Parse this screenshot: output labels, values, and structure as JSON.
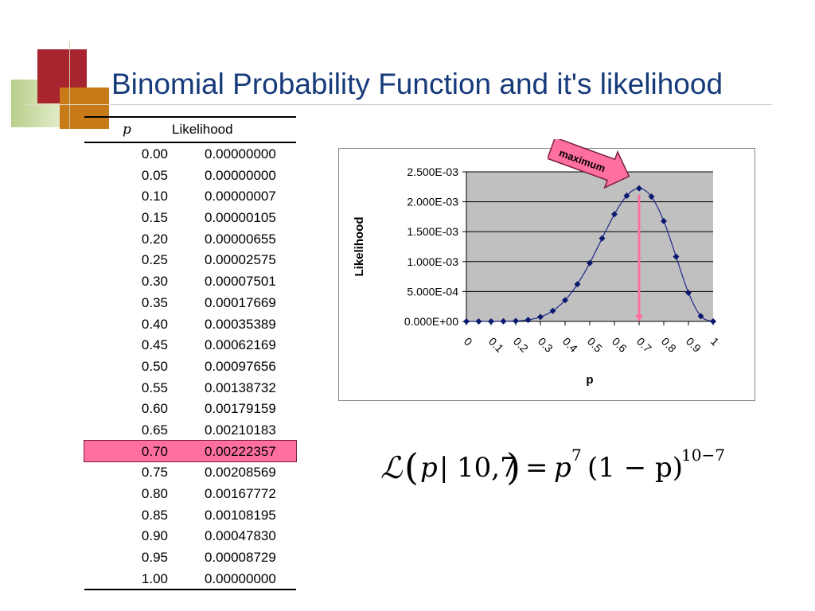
{
  "title": "Binomial Probability Function and it's likelihood",
  "table": {
    "headers": [
      "p",
      "Likelihood"
    ],
    "rows": [
      [
        "0.00",
        "0.00000000"
      ],
      [
        "0.05",
        "0.00000000"
      ],
      [
        "0.10",
        "0.00000007"
      ],
      [
        "0.15",
        "0.00000105"
      ],
      [
        "0.20",
        "0.00000655"
      ],
      [
        "0.25",
        "0.00002575"
      ],
      [
        "0.30",
        "0.00007501"
      ],
      [
        "0.35",
        "0.00017669"
      ],
      [
        "0.40",
        "0.00035389"
      ],
      [
        "0.45",
        "0.00062169"
      ],
      [
        "0.50",
        "0.00097656"
      ],
      [
        "0.55",
        "0.00138732"
      ],
      [
        "0.60",
        "0.00179159"
      ],
      [
        "0.65",
        "0.00210183"
      ],
      [
        "0.70",
        "0.00222357"
      ],
      [
        "0.75",
        "0.00208569"
      ],
      [
        "0.80",
        "0.00167772"
      ],
      [
        "0.85",
        "0.00108195"
      ],
      [
        "0.90",
        "0.00047830"
      ],
      [
        "0.95",
        "0.00008729"
      ],
      [
        "1.00",
        "0.00000000"
      ]
    ],
    "highlight_row": 14,
    "highlight_color": "#ff6fa0"
  },
  "chart_data": {
    "type": "line",
    "x": [
      0,
      0.05,
      0.1,
      0.15,
      0.2,
      0.25,
      0.3,
      0.35,
      0.4,
      0.45,
      0.5,
      0.55,
      0.6,
      0.65,
      0.7,
      0.75,
      0.8,
      0.85,
      0.9,
      0.95,
      1
    ],
    "series": [
      {
        "values": [
          0,
          0,
          7e-08,
          1.05e-06,
          6.55e-06,
          2.575e-05,
          7.501e-05,
          0.00017669,
          0.00035389,
          0.00062169,
          0.00097656,
          0.00138732,
          0.00179159,
          0.00210183,
          0.00222357,
          0.00208569,
          0.00167772,
          0.00108195,
          0.0004783,
          8.729e-05,
          0
        ]
      }
    ],
    "xlabel": "p",
    "ylabel": "Likelihood",
    "xlim": [
      0,
      1
    ],
    "ylim": [
      0,
      0.0025
    ],
    "xticks": [
      "0",
      "0.1",
      "0.2",
      "0.3",
      "0.4",
      "0.5",
      "0.6",
      "0.7",
      "0.8",
      "0.9",
      "1"
    ],
    "yticks": [
      "0.000E+00",
      "5.000E-04",
      "1.000E-03",
      "1.500E-03",
      "2.000E-03",
      "2.500E-03"
    ],
    "grid": true,
    "plot_background": "#c0c0c0",
    "line_color": "#1f2a8a",
    "marker_color": "#0b1a6e",
    "annotation": {
      "text": "maximum",
      "x": 0.7,
      "color": "#ff6fa0"
    }
  },
  "formula": {
    "script_l": "ℒ",
    "lparen": "(",
    "p1": "p",
    "bar": "|",
    "args": "10,7",
    "rparen": ")",
    "eq": "=",
    "p2": "p",
    "exp1": "7",
    "paren_expr": "(1 − p)",
    "exp2": "10−7"
  }
}
